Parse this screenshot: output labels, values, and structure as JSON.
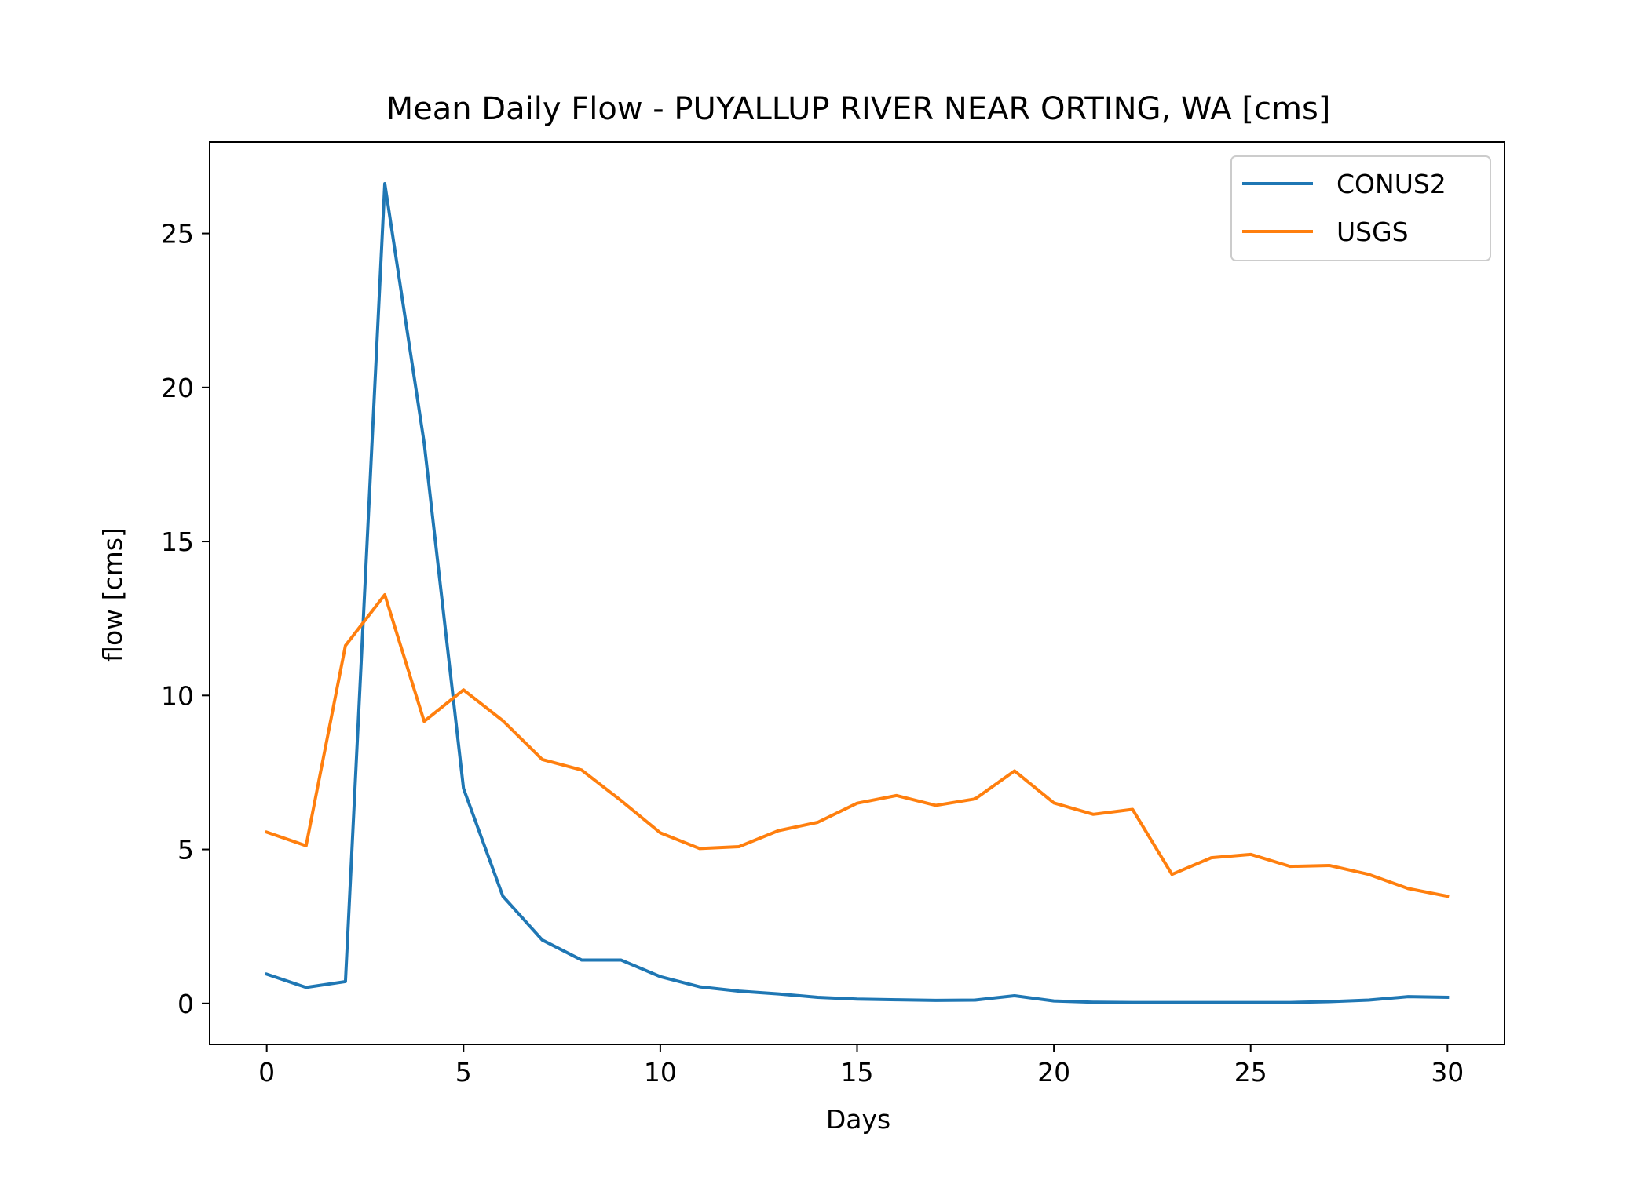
{
  "chart_data": {
    "type": "line",
    "title": "Mean Daily Flow - PUYALLUP RIVER NEAR ORTING, WA [cms]",
    "xlabel": "Days",
    "ylabel": "flow [cms]",
    "xlim": [
      -1.45,
      31.45
    ],
    "ylim": [
      -1.33,
      27.97
    ],
    "xticks": [
      0,
      5,
      10,
      15,
      20,
      25,
      30
    ],
    "yticks": [
      0,
      5,
      10,
      15,
      20,
      25
    ],
    "grid": false,
    "legend_position": "upper right",
    "x": [
      0,
      1,
      2,
      3,
      4,
      5,
      6,
      7,
      8,
      9,
      10,
      11,
      12,
      13,
      14,
      15,
      16,
      17,
      18,
      19,
      20,
      21,
      22,
      23,
      24,
      25,
      26,
      27,
      28,
      29,
      30
    ],
    "series": [
      {
        "name": "CONUS2",
        "color": "#1f77b4",
        "values": [
          0.95,
          0.52,
          0.71,
          26.62,
          18.2,
          6.98,
          3.48,
          2.06,
          1.41,
          1.41,
          0.87,
          0.54,
          0.4,
          0.31,
          0.2,
          0.14,
          0.12,
          0.1,
          0.11,
          0.25,
          0.08,
          0.04,
          0.03,
          0.03,
          0.03,
          0.03,
          0.03,
          0.06,
          0.11,
          0.22,
          0.2
        ]
      },
      {
        "name": "USGS",
        "color": "#ff7f0e",
        "values": [
          5.56,
          5.12,
          11.62,
          13.27,
          9.16,
          10.18,
          9.18,
          7.92,
          7.58,
          6.59,
          5.54,
          5.03,
          5.09,
          5.61,
          5.88,
          6.5,
          6.75,
          6.43,
          6.64,
          7.55,
          6.51,
          6.14,
          6.3,
          4.19,
          4.73,
          4.84,
          4.45,
          4.48,
          4.19,
          3.73,
          3.48
        ]
      }
    ]
  }
}
